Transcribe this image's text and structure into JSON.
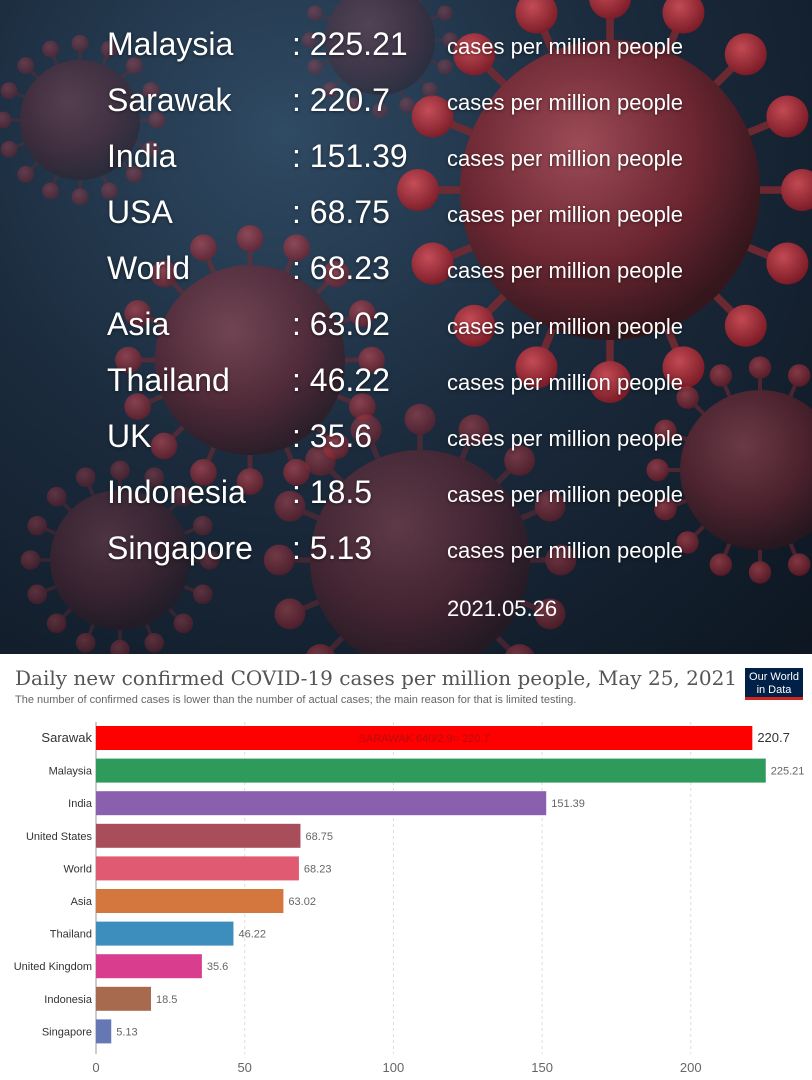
{
  "stats": {
    "rows": [
      {
        "name": "Malaysia",
        "value": ": 225.21",
        "unit": "cases per million people"
      },
      {
        "name": "Sarawak",
        "value": ": 220.7",
        "unit": "cases per million people"
      },
      {
        "name": "India",
        "value": ": 151.39",
        "unit": "cases per million people"
      },
      {
        "name": "USA",
        "value": ": 68.75",
        "unit": "cases per million people"
      },
      {
        "name": "World",
        "value": ": 68.23",
        "unit": "cases per million people"
      },
      {
        "name": "Asia",
        "value": ": 63.02",
        "unit": "cases per million people"
      },
      {
        "name": "Thailand",
        "value": ": 46.22",
        "unit": "cases per million people"
      },
      {
        "name": "UK",
        "value": ": 35.6",
        "unit": "cases per million people"
      },
      {
        "name": "Indonesia",
        "value": ": 18.5",
        "unit": "cases per million people"
      },
      {
        "name": "Singapore",
        "value": ": 5.13",
        "unit": "cases per million people"
      }
    ],
    "date": "2021.05.26"
  },
  "logo": {
    "line1": "Our World",
    "line2": "in Data"
  },
  "chart_data": {
    "type": "bar",
    "orientation": "horizontal",
    "title": "Daily new confirmed COVID-19 cases per million people, May 25, 2021",
    "subtitle": "The number of confirmed cases is lower than the number of actual cases; the main reason for that is limited testing.",
    "categories": [
      "Sarawak",
      "Malaysia",
      "India",
      "United States",
      "World",
      "Asia",
      "Thailand",
      "United Kingdom",
      "Indonesia",
      "Singapore"
    ],
    "values": [
      220.7,
      225.21,
      151.39,
      68.75,
      68.23,
      63.02,
      46.22,
      35.6,
      18.5,
      5.13
    ],
    "value_labels": [
      "220.7",
      "225.21",
      "151.39",
      "68.75",
      "68.23",
      "63.02",
      "46.22",
      "35.6",
      "18.5",
      "5.13"
    ],
    "colors": [
      "#ff0000",
      "#2e9a5c",
      "#8a5fae",
      "#a84e5a",
      "#e05a71",
      "#d4773f",
      "#3d8dbd",
      "#d93d8e",
      "#a86a4e",
      "#6678b3"
    ],
    "annotation": {
      "category": "Sarawak",
      "text": "SARAWAK 640/2.9= 220.7",
      "color": "#b01010"
    },
    "xticks": [
      0,
      50,
      100,
      150,
      200
    ],
    "xlim": [
      0,
      230
    ],
    "grid": true
  }
}
